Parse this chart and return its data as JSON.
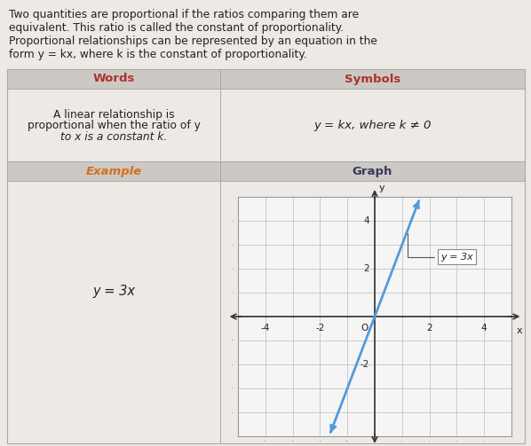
{
  "bg_color": "#ede9e4",
  "intro_text_lines": [
    "Two quantities are proportional if the ratios comparing them are",
    "equivalent. This ratio is called the constant of proportionality.",
    "Proportional relationships can be represented by an equation in the",
    "form y = kx, where k is the constant of proportionality."
  ],
  "header_row_bg": "#ccc9c4",
  "words_header": "Words",
  "symbols_header": "Symbols",
  "words_header_color": "#b03030",
  "symbols_header_color": "#b03030",
  "example_header": "Example",
  "graph_header": "Graph",
  "example_header_color": "#d4701a",
  "graph_header_color": "#3a3a5c",
  "words_line1": "A linear relationship is",
  "words_line2": "proportional when the ratio of y",
  "words_line3": "to x is a constant k.",
  "symbols_eq": "y = kx, where k ≠ 0",
  "example_eq": "y = 3x",
  "graph_label": "y = 3x",
  "graph_line_color": "#5599dd",
  "graph_bg": "#f5f5f5",
  "graph_border_color": "#999999",
  "grid_color": "#bbbbbb",
  "divider_color": "#aaaaaa",
  "text_color": "#222222",
  "table_border_color": "#aaaaaa"
}
